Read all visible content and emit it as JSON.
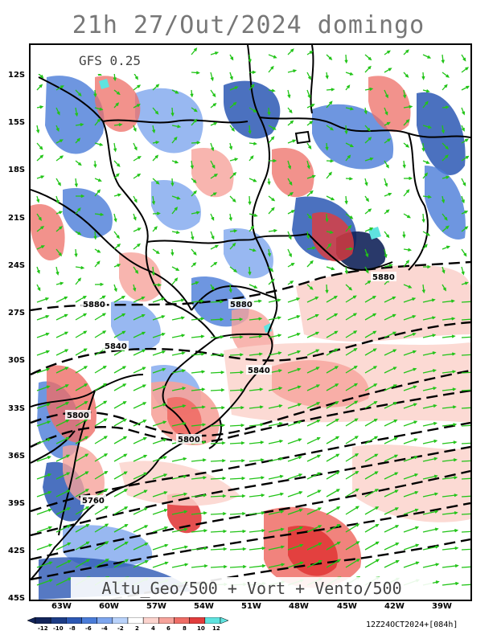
{
  "title": "21h 27/Out/2024 domingo",
  "model_label": "GFS 0.25",
  "bottom_label": "Altu_Geo/500 + Vort + Vento/500",
  "run_label": "12Z24OCT2024+[084h]",
  "lat_labels": [
    "12S",
    "15S",
    "18S",
    "21S",
    "24S",
    "27S",
    "30S",
    "33S",
    "36S",
    "39S",
    "42S",
    "45S"
  ],
  "lon_labels": [
    "63W",
    "60W",
    "57W",
    "54W",
    "51W",
    "48W",
    "45W",
    "42W",
    "39W"
  ],
  "colorbar": {
    "ticks": [
      "-12",
      "-10",
      "-8",
      "-6",
      "-4",
      "-2",
      "2",
      "4",
      "6",
      "8",
      "10",
      "12"
    ],
    "colors": [
      "#12245a",
      "#1c3c86",
      "#2c58b4",
      "#4a7cd8",
      "#7ea6ee",
      "#b9d2fa",
      "#ffffff",
      "#fbd3cd",
      "#f6a39b",
      "#ee6d66",
      "#e13c3c",
      "#5fe3df"
    ]
  },
  "contour_labels": [
    "5880",
    "5880",
    "5880",
    "5840",
    "5840",
    "5800",
    "5800",
    "5760"
  ],
  "colors": {
    "wind": "#22c418",
    "contour": "#000000",
    "positive": "#e23a3a",
    "negative": "#2c58b4"
  }
}
